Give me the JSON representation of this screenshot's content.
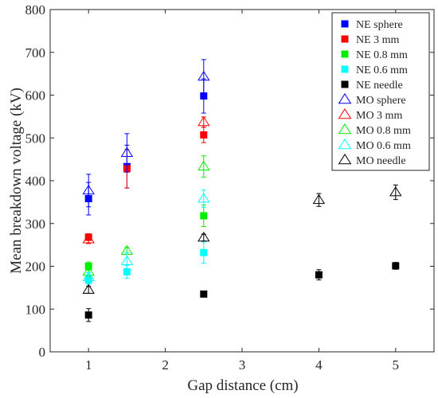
{
  "chart_data": {
    "type": "scatter",
    "title": "",
    "xlabel": "Gap distance (cm)",
    "ylabel": "Mean breakdown voltage (kV)",
    "xlim": [
      0.5,
      5.5
    ],
    "ylim": [
      0,
      800
    ],
    "xticks": [
      1,
      2,
      3,
      4,
      5
    ],
    "yticks": [
      0,
      100,
      200,
      300,
      400,
      500,
      600,
      700,
      800
    ],
    "grid": false,
    "legend_position": "top-right",
    "series": [
      {
        "name": "NE sphere",
        "marker": "square",
        "filled": true,
        "color": "#0000ff",
        "points": [
          {
            "x": 1,
            "y": 358,
            "err": 38
          },
          {
            "x": 1.5,
            "y": 433,
            "err": 50
          },
          {
            "x": 2.5,
            "y": 598,
            "err": 40
          }
        ]
      },
      {
        "name": "NE 3 mm",
        "marker": "square",
        "filled": true,
        "color": "#ff0000",
        "points": [
          {
            "x": 1,
            "y": 268,
            "err": 8
          },
          {
            "x": 1.5,
            "y": 428,
            "err": 45
          },
          {
            "x": 2.5,
            "y": 507,
            "err": 18
          }
        ]
      },
      {
        "name": "NE 0.8 mm",
        "marker": "square",
        "filled": true,
        "color": "#00ee00",
        "points": [
          {
            "x": 1,
            "y": 200,
            "err": 10
          },
          {
            "x": 2.5,
            "y": 318,
            "err": 25
          }
        ]
      },
      {
        "name": "NE 0.6 mm",
        "marker": "square",
        "filled": true,
        "color": "#00ffff",
        "points": [
          {
            "x": 1,
            "y": 168,
            "err": 10
          },
          {
            "x": 1.5,
            "y": 187,
            "err": 15
          },
          {
            "x": 2.5,
            "y": 232,
            "err": 25
          }
        ]
      },
      {
        "name": "NE needle",
        "marker": "square",
        "filled": true,
        "color": "#000000",
        "points": [
          {
            "x": 1,
            "y": 86,
            "err": 15
          },
          {
            "x": 2.5,
            "y": 135,
            "err": 6
          },
          {
            "x": 4,
            "y": 180,
            "err": 12
          },
          {
            "x": 5,
            "y": 201,
            "err": 8
          }
        ]
      },
      {
        "name": "MO sphere",
        "marker": "triangle",
        "filled": false,
        "color": "#0000ff",
        "points": [
          {
            "x": 1,
            "y": 377,
            "err": 38
          },
          {
            "x": 1.5,
            "y": 465,
            "err": 45
          },
          {
            "x": 2.5,
            "y": 643,
            "err": 40
          }
        ]
      },
      {
        "name": "MO 3 mm",
        "marker": "triangle",
        "filled": false,
        "color": "#ff0000",
        "points": [
          {
            "x": 1,
            "y": 263,
            "err": 10
          },
          {
            "x": 2.5,
            "y": 537,
            "err": 12
          }
        ]
      },
      {
        "name": "MO 0.8 mm",
        "marker": "triangle",
        "filled": false,
        "color": "#00ee00",
        "points": [
          {
            "x": 1,
            "y": 187,
            "err": 10
          },
          {
            "x": 1.5,
            "y": 236,
            "err": 8
          },
          {
            "x": 2.5,
            "y": 433,
            "err": 25
          }
        ]
      },
      {
        "name": "MO 0.6 mm",
        "marker": "triangle",
        "filled": false,
        "color": "#00ffff",
        "points": [
          {
            "x": 1,
            "y": 175,
            "err": 10
          },
          {
            "x": 1.5,
            "y": 212,
            "err": 20
          },
          {
            "x": 2.5,
            "y": 358,
            "err": 20
          }
        ]
      },
      {
        "name": "MO needle",
        "marker": "triangle",
        "filled": false,
        "color": "#000000",
        "points": [
          {
            "x": 1,
            "y": 145,
            "err": 8
          },
          {
            "x": 2.5,
            "y": 267,
            "err": 8
          },
          {
            "x": 4,
            "y": 355,
            "err": 15
          },
          {
            "x": 5,
            "y": 373,
            "err": 17
          }
        ]
      }
    ]
  }
}
